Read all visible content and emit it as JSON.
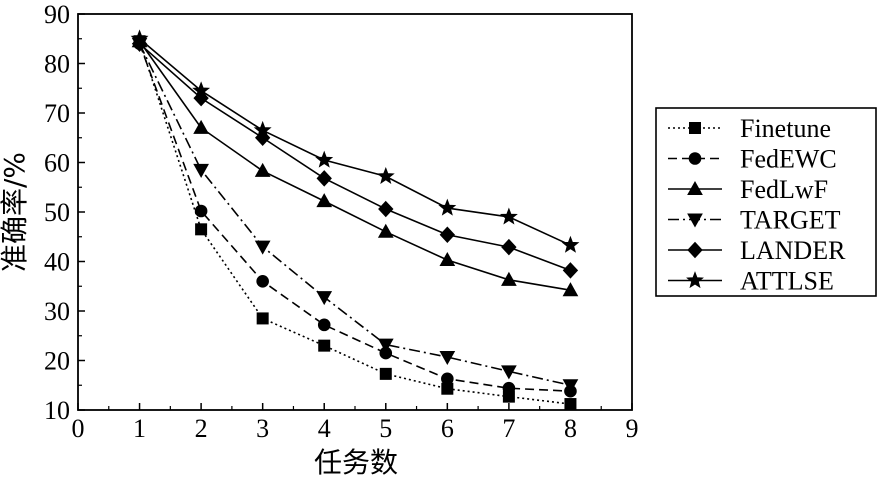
{
  "chart_data": {
    "type": "line",
    "xlabel": "任务数",
    "ylabel": "准确率/%",
    "xlim": [
      0,
      9
    ],
    "ylim": [
      10,
      90
    ],
    "xticks": [
      0,
      1,
      2,
      3,
      4,
      5,
      6,
      7,
      8,
      9
    ],
    "yticks": [
      10,
      20,
      30,
      40,
      50,
      60,
      70,
      80,
      90
    ],
    "grid": false,
    "legend_position": "right",
    "x": [
      1,
      2,
      3,
      4,
      5,
      6,
      7,
      8
    ],
    "series": [
      {
        "name": "Finetune",
        "line_style": "dotted",
        "marker": "square",
        "values": [
          84.5,
          46.5,
          28.5,
          23.0,
          17.3,
          14.3,
          12.7,
          11.2
        ]
      },
      {
        "name": "FedEWC",
        "line_style": "dashed",
        "marker": "circle",
        "values": [
          84.0,
          50.2,
          36.0,
          27.2,
          21.5,
          16.3,
          14.4,
          13.8
        ]
      },
      {
        "name": "FedLwF",
        "line_style": "solid",
        "marker": "triangle-up",
        "values": [
          84.5,
          67.0,
          58.3,
          52.2,
          46.0,
          40.3,
          36.3,
          34.2
        ]
      },
      {
        "name": "TARGET",
        "line_style": "dash-dot",
        "marker": "triangle-down",
        "values": [
          84.0,
          58.5,
          43.0,
          32.8,
          23.2,
          20.7,
          17.8,
          15.0
        ]
      },
      {
        "name": "LANDER",
        "line_style": "solid",
        "marker": "diamond",
        "values": [
          84.0,
          73.0,
          65.0,
          56.8,
          50.6,
          45.4,
          42.9,
          38.2
        ]
      },
      {
        "name": "ATTLSE",
        "line_style": "solid",
        "marker": "star",
        "values": [
          85.0,
          74.5,
          66.5,
          60.5,
          57.2,
          50.8,
          49.0,
          43.3
        ]
      }
    ]
  }
}
